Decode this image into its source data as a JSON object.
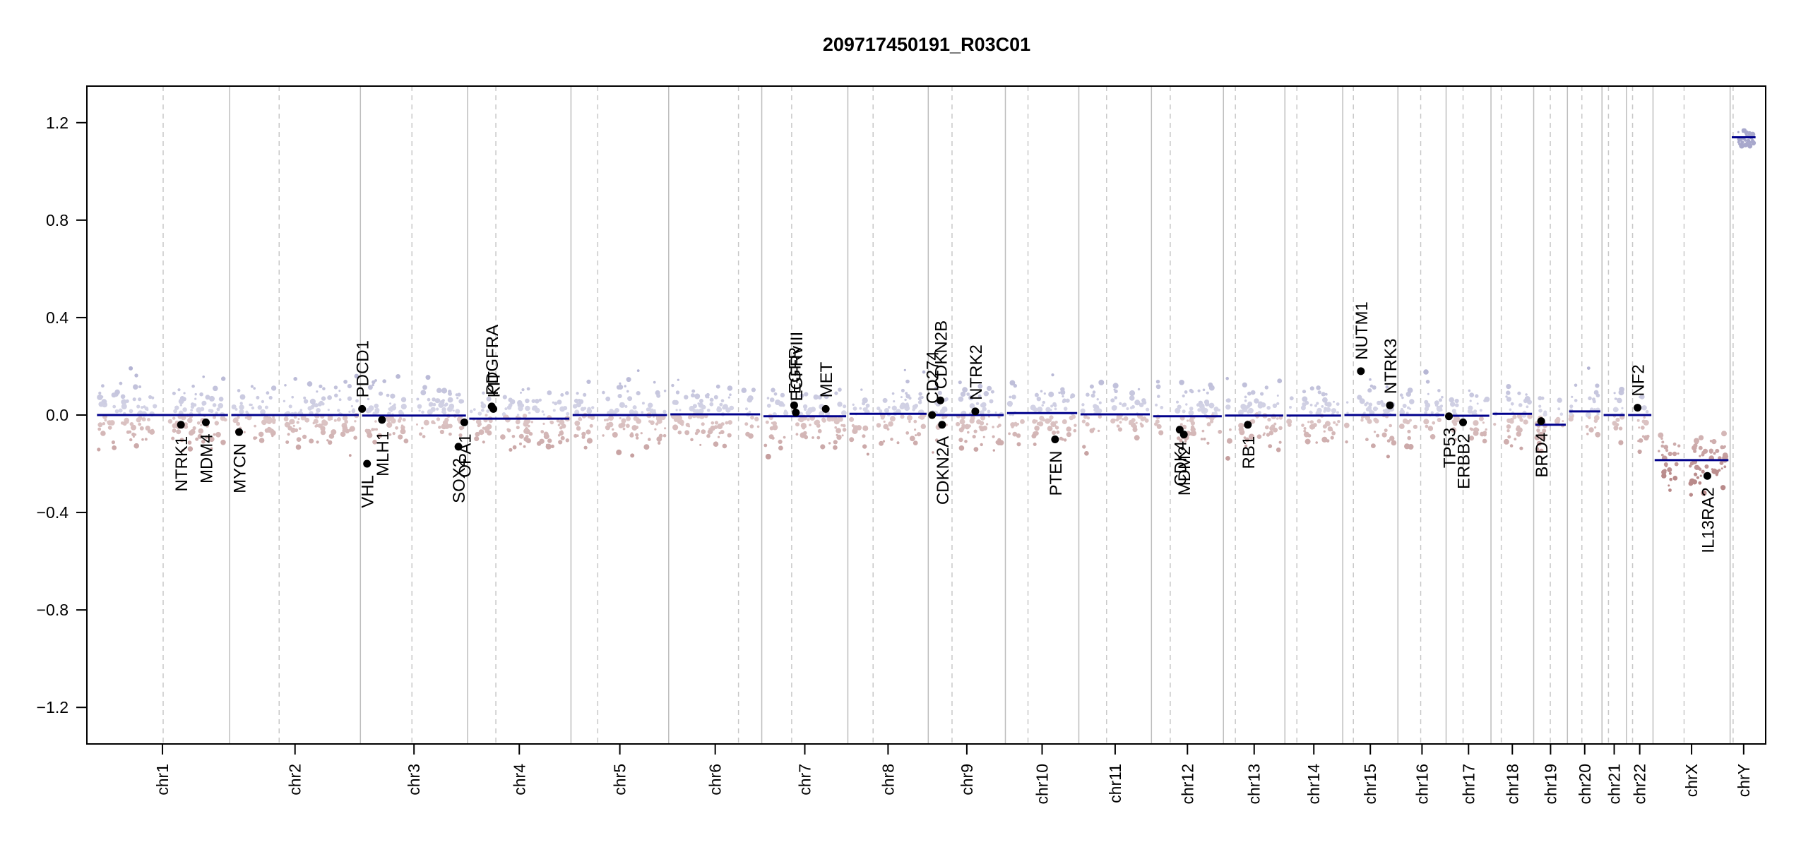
{
  "chart_data": {
    "type": "scatter",
    "title": "209717450191_R03C01",
    "xlabel": "",
    "ylabel": "",
    "ylim": [
      -1.35,
      1.35
    ],
    "y_ticks": [
      "1.2",
      "0.8",
      "0.4",
      "0.0",
      "−0.4",
      "−0.8",
      "−1.2"
    ],
    "y_tick_values": [
      1.2,
      0.8,
      0.4,
      0.0,
      -0.4,
      -0.8,
      -1.2
    ],
    "grid": "chromosome boundaries (solid) and centromeres (dashed)",
    "colors": {
      "positive": "#a8a8cc",
      "negative": "#b98a8a",
      "segment": "#00008b",
      "boundary": "#bdbdbd",
      "centromere": "#c8c8c8"
    },
    "chromosomes": [
      {
        "label": "chr1",
        "start": 0.0,
        "end": 0.0808,
        "cen": 0.0408,
        "seg": 0.0
      },
      {
        "label": "chr2",
        "start": 0.0808,
        "end": 0.1595,
        "cen": 0.1106,
        "seg": 0.0
      },
      {
        "label": "chr3",
        "start": 0.1595,
        "end": 0.224,
        "cen": 0.1905,
        "seg": -0.002
      },
      {
        "label": "chr4",
        "start": 0.224,
        "end": 0.2862,
        "cen": 0.241,
        "seg": -0.015
      },
      {
        "label": "chr5",
        "start": 0.2862,
        "end": 0.345,
        "cen": 0.3023,
        "seg": 0.0
      },
      {
        "label": "chr6",
        "start": 0.345,
        "end": 0.401,
        "cen": 0.387,
        "seg": 0.003
      },
      {
        "label": "chr7",
        "start": 0.401,
        "end": 0.4528,
        "cen": 0.419,
        "seg": -0.005
      },
      {
        "label": "chr8",
        "start": 0.4528,
        "end": 0.5012,
        "cen": 0.468,
        "seg": 0.005
      },
      {
        "label": "chr9",
        "start": 0.5012,
        "end": 0.5476,
        "cen": 0.5155,
        "seg": 0.0
      },
      {
        "label": "chr10",
        "start": 0.5476,
        "end": 0.5918,
        "cen": 0.5612,
        "seg": 0.008
      },
      {
        "label": "chr11",
        "start": 0.5918,
        "end": 0.6355,
        "cen": 0.6085,
        "seg": 0.003
      },
      {
        "label": "chr12",
        "start": 0.6355,
        "end": 0.6788,
        "cen": 0.6468,
        "seg": -0.005
      },
      {
        "label": "chr13",
        "start": 0.6788,
        "end": 0.7158,
        "cen": 0.686,
        "seg": -0.002
      },
      {
        "label": "chr14",
        "start": 0.7158,
        "end": 0.7506,
        "cen": 0.723,
        "seg": -0.002
      },
      {
        "label": "chr15",
        "start": 0.7506,
        "end": 0.7838,
        "cen": 0.757,
        "seg": 0.0
      },
      {
        "label": "chr16",
        "start": 0.7838,
        "end": 0.8128,
        "cen": 0.7975,
        "seg": 0.0
      },
      {
        "label": "chr17",
        "start": 0.8128,
        "end": 0.8398,
        "cen": 0.823,
        "seg": -0.003
      },
      {
        "label": "chr18",
        "start": 0.8398,
        "end": 0.8655,
        "cen": 0.846,
        "seg": 0.005
      },
      {
        "label": "chr19",
        "start": 0.8655,
        "end": 0.8858,
        "cen": 0.8755,
        "seg": -0.04
      },
      {
        "label": "chr20",
        "start": 0.8858,
        "end": 0.9066,
        "cen": 0.8945,
        "seg": 0.015
      },
      {
        "label": "chr21",
        "start": 0.9066,
        "end": 0.9213,
        "cen": 0.9105,
        "seg": 0.0
      },
      {
        "label": "chr22",
        "start": 0.9213,
        "end": 0.9373,
        "cen": 0.925,
        "seg": 0.0
      },
      {
        "label": "chrX",
        "start": 0.9373,
        "end": 0.9837,
        "cen": 0.956,
        "seg": -0.185
      },
      {
        "label": "chrY",
        "start": 0.9837,
        "end": 1.0,
        "cen": 0.9855,
        "seg": 1.14
      }
    ],
    "genes": [
      {
        "label": "NTRK1",
        "x": 0.0515,
        "y": -0.04,
        "side": "below"
      },
      {
        "label": "MDM4",
        "x": 0.0665,
        "y": -0.03,
        "side": "below"
      },
      {
        "label": "MYCN",
        "x": 0.0865,
        "y": -0.07,
        "side": "below"
      },
      {
        "label": "PDCD1",
        "x": 0.1605,
        "y": 0.025,
        "side": "above"
      },
      {
        "label": "VHL",
        "x": 0.1635,
        "y": -0.2,
        "side": "below"
      },
      {
        "label": "MLH1",
        "x": 0.1725,
        "y": -0.02,
        "side": "below"
      },
      {
        "label": "SOX2",
        "x": 0.2185,
        "y": -0.13,
        "side": "below"
      },
      {
        "label": "OPA1",
        "x": 0.222,
        "y": -0.03,
        "side": "below"
      },
      {
        "label": "PDGFRA",
        "x": 0.2385,
        "y": 0.035,
        "side": "above"
      },
      {
        "label": "KIT",
        "x": 0.2395,
        "y": 0.025,
        "side": "above"
      },
      {
        "label": "EGFR",
        "x": 0.4205,
        "y": 0.04,
        "side": "above"
      },
      {
        "label": "EGFRvIII",
        "x": 0.4215,
        "y": 0.01,
        "side": "above"
      },
      {
        "label": "MET",
        "x": 0.4395,
        "y": 0.025,
        "side": "above"
      },
      {
        "label": "CD274",
        "x": 0.5035,
        "y": 0.0,
        "side": "above"
      },
      {
        "label": "CDKN2B",
        "x": 0.5085,
        "y": 0.06,
        "side": "above"
      },
      {
        "label": "CDKN2A",
        "x": 0.5095,
        "y": -0.04,
        "side": "below"
      },
      {
        "label": "NTRK2",
        "x": 0.5295,
        "y": 0.015,
        "side": "above"
      },
      {
        "label": "PTEN",
        "x": 0.5775,
        "y": -0.1,
        "side": "below"
      },
      {
        "label": "CDK4",
        "x": 0.6525,
        "y": -0.06,
        "side": "below"
      },
      {
        "label": "MDM2",
        "x": 0.655,
        "y": -0.08,
        "side": "below"
      },
      {
        "label": "RB1",
        "x": 0.6935,
        "y": -0.04,
        "side": "below"
      },
      {
        "label": "NUTM1",
        "x": 0.7615,
        "y": 0.18,
        "side": "above"
      },
      {
        "label": "NTRK3",
        "x": 0.779,
        "y": 0.04,
        "side": "above"
      },
      {
        "label": "TP53",
        "x": 0.8145,
        "y": -0.005,
        "side": "below"
      },
      {
        "label": "ERBB2",
        "x": 0.823,
        "y": -0.03,
        "side": "below"
      },
      {
        "label": "BRD4",
        "x": 0.87,
        "y": -0.025,
        "side": "below"
      },
      {
        "label": "NF2",
        "x": 0.928,
        "y": 0.03,
        "side": "above"
      },
      {
        "label": "IL13RA2",
        "x": 0.97,
        "y": -0.25,
        "side": "below"
      }
    ]
  }
}
